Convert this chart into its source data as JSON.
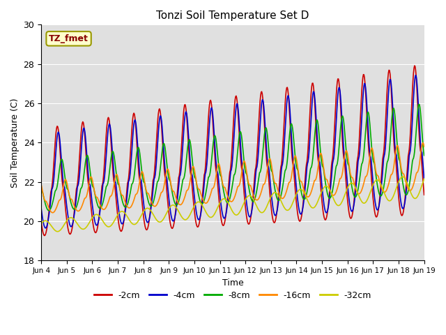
{
  "title": "Tonzi Soil Temperature Set D",
  "xlabel": "Time",
  "ylabel": "Soil Temperature (C)",
  "ylim": [
    18,
    30
  ],
  "annotation": "TZ_fmet",
  "bg_color": "#e0e0e0",
  "xtick_labels": [
    "Jun 4",
    "Jun 5",
    "Jun 6",
    "Jun 7",
    "Jun 8",
    "Jun 9",
    "Jun 10",
    "Jun 11",
    "Jun 12",
    "Jun 13",
    "Jun 14",
    "Jun 15",
    "Jun 16",
    "Jun 17",
    "Jun 18",
    "Jun 19"
  ],
  "series": {
    "-2cm": {
      "color": "#cc0000",
      "lw": 1.2
    },
    "-4cm": {
      "color": "#0000cc",
      "lw": 1.2
    },
    "-8cm": {
      "color": "#00aa00",
      "lw": 1.2
    },
    "-16cm": {
      "color": "#ff8800",
      "lw": 1.2
    },
    "-32cm": {
      "color": "#cccc00",
      "lw": 1.2
    }
  },
  "legend_order": [
    "-2cm",
    "-4cm",
    "-8cm",
    "-16cm",
    "-32cm"
  ]
}
